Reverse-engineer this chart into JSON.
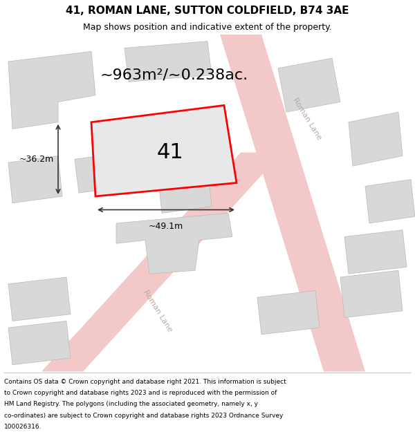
{
  "title": "41, ROMAN LANE, SUTTON COLDFIELD, B74 3AE",
  "subtitle": "Map shows position and indicative extent of the property.",
  "area_text": "~963m²/~0.238ac.",
  "property_number": "41",
  "width_label": "~49.1m",
  "height_label": "~36.2m",
  "bg_color": "#ffffff",
  "map_bg": "#ffffff",
  "road_color": "#f2c8c8",
  "building_color": "#d8d8d8",
  "building_edge": "#b8b8b8",
  "road_label_color": "#b8a8a8",
  "property_fill": "#e8e8e8",
  "property_edge": "#ff0000",
  "dim_color": "#333333",
  "footer_lines": [
    "Contains OS data © Crown copyright and database right 2021. This information is subject",
    "to Crown copyright and database rights 2023 and is reproduced with the permission of",
    "HM Land Registry. The polygons (including the associated geometry, namely x, y",
    "co-ordinates) are subject to Crown copyright and database rights 2023 Ordnance Survey",
    "100026316."
  ],
  "title_fontsize": 11,
  "subtitle_fontsize": 9,
  "area_fontsize": 16,
  "property_num_fontsize": 22,
  "dim_fontsize": 9,
  "road_label_fontsize": 8,
  "footer_fontsize": 6.5
}
